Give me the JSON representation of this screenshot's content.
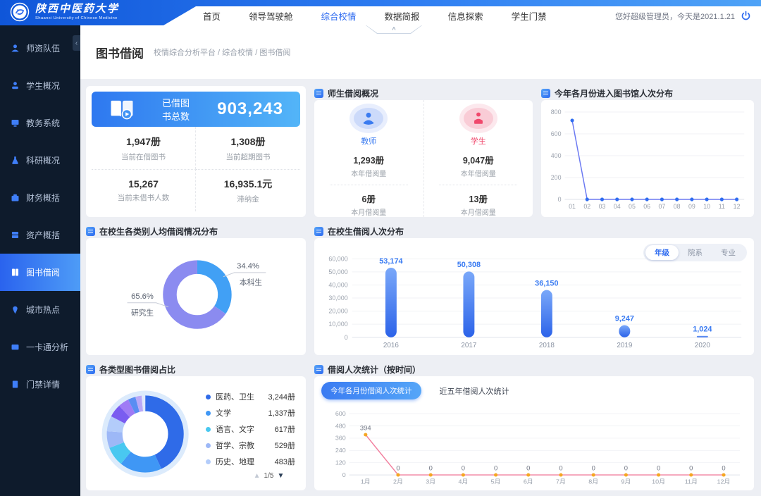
{
  "header": {
    "logo_title": "陕西中医药大学",
    "logo_subtitle": "Shaanxi University of Chinese Medicine",
    "nav": [
      {
        "key": "home",
        "label": "首页",
        "active": false
      },
      {
        "key": "cockpit",
        "label": "领导驾驶舱",
        "active": false
      },
      {
        "key": "school-overview",
        "label": "综合校情",
        "active": true
      },
      {
        "key": "data-brief",
        "label": "数据简报",
        "active": false
      },
      {
        "key": "info-explore",
        "label": "信息探索",
        "active": false
      },
      {
        "key": "student-access",
        "label": "学生门禁",
        "active": false
      }
    ],
    "greeting": "您好超级管理员，今天是2021.1.21"
  },
  "sidebar": {
    "items": [
      {
        "key": "faculty",
        "label": "师资队伍",
        "active": false
      },
      {
        "key": "students",
        "label": "学生概况",
        "active": false
      },
      {
        "key": "academic",
        "label": "教务系统",
        "active": false
      },
      {
        "key": "research",
        "label": "科研概况",
        "active": false
      },
      {
        "key": "finance",
        "label": "财务概括",
        "active": false
      },
      {
        "key": "assets",
        "label": "资产概括",
        "active": false
      },
      {
        "key": "library",
        "label": "图书借阅",
        "active": true
      },
      {
        "key": "city-hotspot",
        "label": "城市热点",
        "active": false
      },
      {
        "key": "card-analysis",
        "label": "一卡通分析",
        "active": false
      },
      {
        "key": "access-detail",
        "label": "门禁详情",
        "active": false
      }
    ]
  },
  "page": {
    "title": "图书借阅",
    "breadcrumb": "校情综合分析平台 / 综合校情 / 图书借阅"
  },
  "overview": {
    "banner_label": "已借图书总数",
    "banner_value": "903,243",
    "stats": [
      {
        "value": "1,947册",
        "label": "当前在借图书"
      },
      {
        "value": "1,308册",
        "label": "当前超期图书"
      },
      {
        "value": "15,267",
        "label": "当前未借书人数"
      },
      {
        "value": "16,935.1元",
        "label": "滞纳金"
      }
    ]
  },
  "faculty_student": {
    "title": "师生借阅概况",
    "groups": [
      {
        "key": "teacher",
        "name": "教师",
        "year_value": "1,293册",
        "year_label": "本年借阅量",
        "month_value": "6册",
        "month_label": "本月借阅量"
      },
      {
        "key": "student",
        "name": "学生",
        "year_value": "9,047册",
        "year_label": "本年借阅量",
        "month_value": "13册",
        "month_label": "本月借阅量"
      }
    ]
  },
  "sections": {
    "entries_title": "今年各月份进入图书馆人次分布",
    "percapita_title": "在校生各类别人均借阅情况分布",
    "grade_title": "在校生借阅人次分布",
    "grade_tabs": [
      {
        "label": "年级",
        "active": true
      },
      {
        "label": "院系",
        "active": false
      },
      {
        "label": "专业",
        "active": false
      }
    ],
    "types_title": "各类型图书借阅占比",
    "types_pagination": "1/5",
    "time_title": "借阅人次统计（按时间）",
    "time_buttons": [
      {
        "label": "今年各月份借阅人次统计",
        "active": true
      },
      {
        "label": "近五年借阅人次统计",
        "active": false
      }
    ]
  },
  "chart_data": [
    {
      "type": "line",
      "title": "今年各月份进入图书馆人次分布",
      "x": [
        "01",
        "02",
        "03",
        "04",
        "05",
        "06",
        "07",
        "08",
        "09",
        "10",
        "11",
        "12"
      ],
      "values": [
        723,
        0,
        0,
        0,
        0,
        0,
        0,
        0,
        0,
        0,
        0,
        0
      ],
      "yticks": [
        0,
        200,
        400,
        600,
        800
      ],
      "ytick_labels": [
        "0",
        "200",
        "400",
        "600",
        "800"
      ],
      "line_color": "#6b79f2",
      "point_color": "#2f6df0"
    },
    {
      "type": "pie",
      "title": "在校生各类别人均借阅情况分布",
      "donut": true,
      "slices": [
        {
          "label": "本科生",
          "value": 34.4,
          "pct_label": "34.4%",
          "color": "#41a0f5"
        },
        {
          "label": "研究生",
          "value": 65.6,
          "pct_label": "65.6%",
          "color": "#8b8bf0"
        }
      ]
    },
    {
      "type": "bar",
      "title": "在校生借阅人次分布",
      "categories": [
        "2016",
        "2017",
        "2018",
        "2019",
        "2020"
      ],
      "values": [
        53174,
        50308,
        36150,
        9247,
        1024
      ],
      "value_labels": [
        "53,174",
        "50,308",
        "36,150",
        "9,247",
        "1,024"
      ],
      "yticks": [
        0,
        10000,
        20000,
        30000,
        40000,
        50000,
        60000
      ],
      "ytick_labels": [
        "0",
        "10,000",
        "20,000",
        "30,000",
        "40,000",
        "50,000",
        "60,000"
      ],
      "bar_color_top": "#7aa8f9",
      "bar_color_bottom": "#2c63e9",
      "label_color": "#3a7bf2"
    },
    {
      "type": "pie",
      "title": "各类型图书借阅占比",
      "donut": true,
      "slices": [
        {
          "label": "医药、卫生",
          "count": "3,244册",
          "pct_label": "43.04%",
          "value": 43.04,
          "color": "#2f6be8"
        },
        {
          "label": "文学",
          "count": "1,337册",
          "pct_label": "17.77%",
          "value": 17.77,
          "color": "#3f97f5"
        },
        {
          "label": "语言、文字",
          "count": "617册",
          "pct_label": "8.18%",
          "value": 8.18,
          "color": "#49c8f0"
        },
        {
          "label": "哲学、宗教",
          "count": "529册",
          "pct_label": "7.07%",
          "value": 7.07,
          "color": "#9db8f7"
        },
        {
          "label": "历史、地理",
          "count": "483册",
          "pct_label": "6.44%",
          "value": 6.44,
          "color": "#b3ccfa"
        }
      ],
      "other_slices": [
        {
          "value": 5.5,
          "color": "#7a5cf0"
        },
        {
          "value": 4.5,
          "color": "#9f7bf5"
        },
        {
          "value": 3.2,
          "color": "#5a8df2"
        },
        {
          "value": 2.6,
          "color": "#b9a8f7"
        },
        {
          "value": 1.72,
          "color": "#dfe8fc"
        }
      ],
      "pagination": "1/5"
    },
    {
      "type": "line",
      "title": "借阅人次统计（按时间）",
      "x": [
        "1月",
        "2月",
        "3月",
        "4月",
        "5月",
        "6月",
        "7月",
        "8月",
        "9月",
        "10月",
        "11月",
        "12月"
      ],
      "values": [
        394,
        0,
        0,
        0,
        0,
        0,
        0,
        0,
        0,
        0,
        0,
        0
      ],
      "point_labels": [
        "394",
        "0",
        "0",
        "0",
        "0",
        "0",
        "0",
        "0",
        "0",
        "0",
        "0",
        "0"
      ],
      "yticks": [
        0,
        120,
        240,
        360,
        480,
        600
      ],
      "ytick_labels": [
        "0",
        "120",
        "240",
        "360",
        "480",
        "600"
      ],
      "line_color": "#f27f9e",
      "point_color": "#f5a623"
    }
  ]
}
